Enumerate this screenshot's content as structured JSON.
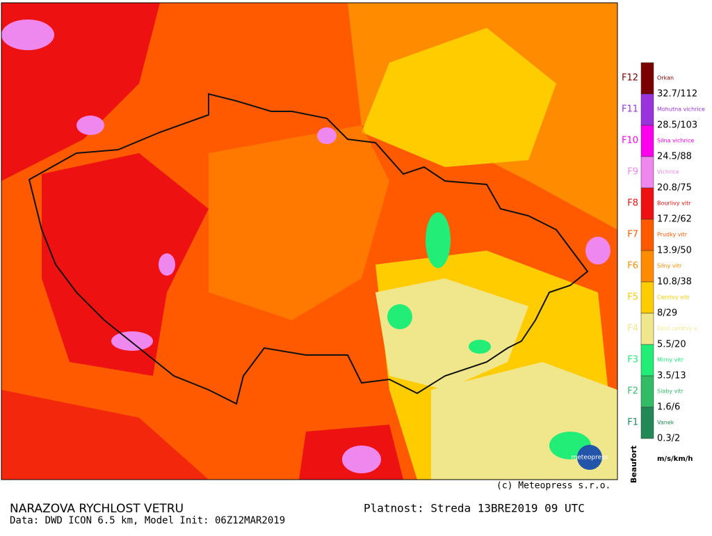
{
  "map": {
    "legend": {
      "items": [
        {
          "force": "F12",
          "name": "Orkan",
          "color": "#7a0000",
          "threshold": "32.7/112"
        },
        {
          "force": "F11",
          "name": "Mohutna vichrice",
          "color": "#9933dd",
          "threshold": "28.5/103"
        },
        {
          "force": "F10",
          "name": "Silna vichrice",
          "color": "#ff00ee",
          "threshold": "24.5/88"
        },
        {
          "force": "F9",
          "name": "Vichrice",
          "color": "#ee88ee",
          "threshold": "20.8/75"
        },
        {
          "force": "F8",
          "name": "Bourlivy vitr",
          "color": "#ee1111",
          "threshold": "17.2/62"
        },
        {
          "force": "F7",
          "name": "Prudky vitr",
          "color": "#ff5a00",
          "threshold": "13.9/50"
        },
        {
          "force": "F6",
          "name": "Silny vitr",
          "color": "#ff8c00",
          "threshold": "10.8/38"
        },
        {
          "force": "F5",
          "name": "Cerstvy vitr",
          "color": "#ffcc00",
          "threshold": "8/29"
        },
        {
          "force": "F4",
          "name": "Dost cerstvy v.",
          "color": "#f0e68c",
          "threshold": "5.5/20"
        },
        {
          "force": "F3",
          "name": "Mirny vitr",
          "color": "#22ee77",
          "threshold": "3.5/13"
        },
        {
          "force": "F2",
          "name": "Slaby vitr",
          "color": "#33bb66",
          "threshold": "1.6/6"
        },
        {
          "force": "F1",
          "name": "Vanek",
          "color": "#228855",
          "threshold": "0.3/2"
        }
      ],
      "scale_title": "Beaufort",
      "units": "m/s/km/h"
    },
    "logo": "meteopress",
    "copyright": "(c) Meteopress s.r.o.",
    "title": "NARAZOVA RYCHLOST VETRU",
    "data_line": "Data: DWD ICON 6.5 km, Model Init: 06Z12MAR2019",
    "validity": "Platnost: Streda 13BRE2019 09 UTC"
  }
}
